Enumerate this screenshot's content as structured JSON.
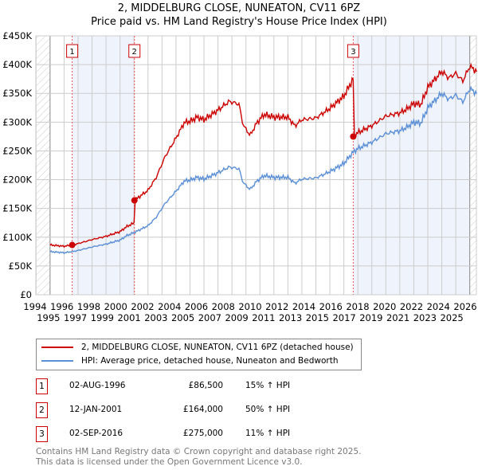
{
  "title": "2, MIDDELBURG CLOSE, NUNEATON, CV11 6PZ",
  "subtitle": "Price paid vs. HM Land Registry's House Price Index (HPI)",
  "chart_data": {
    "type": "line",
    "title": "2, MIDDELBURG CLOSE, NUNEATON, CV11 6PZ",
    "subtitle": "Price paid vs. HM Land Registry's House Price Index (HPI)",
    "xlim": [
      1994,
      2026
    ],
    "ylim": [
      0,
      450000
    ],
    "x_ticks": [
      "1994",
      "1995",
      "1996",
      "1997",
      "1998",
      "1999",
      "2000",
      "2001",
      "2002",
      "2003",
      "2004",
      "2005",
      "2006",
      "2007",
      "2008",
      "2009",
      "2010",
      "2011",
      "2012",
      "2013",
      "2014",
      "2015",
      "2016",
      "2017",
      "2018",
      "2019",
      "2020",
      "2021",
      "2022",
      "2023",
      "2024",
      "2025",
      "2026"
    ],
    "y_ticks": [
      {
        "v": 0,
        "l": "£0"
      },
      {
        "v": 50000,
        "l": "£50K"
      },
      {
        "v": 100000,
        "l": "£100K"
      },
      {
        "v": 150000,
        "l": "£150K"
      },
      {
        "v": 200000,
        "l": "£200K"
      },
      {
        "v": 250000,
        "l": "£250K"
      },
      {
        "v": 300000,
        "l": "£300K"
      },
      {
        "v": 350000,
        "l": "£350K"
      },
      {
        "v": 400000,
        "l": "£400K"
      },
      {
        "v": 450000,
        "l": "£450K"
      }
    ],
    "grid": true,
    "hpi": [
      [
        1995,
        75
      ],
      [
        1996,
        73
      ],
      [
        1996.6,
        75
      ],
      [
        1997,
        77
      ],
      [
        1998,
        83
      ],
      [
        1999,
        88
      ],
      [
        2000,
        95
      ],
      [
        2000.5,
        103
      ],
      [
        2001,
        108
      ],
      [
        2002,
        120
      ],
      [
        2002.6,
        135
      ],
      [
        2003.2,
        158
      ],
      [
        2004,
        180
      ],
      [
        2004.6,
        198
      ],
      [
        2005,
        199
      ],
      [
        2005.5,
        204
      ],
      [
        2006,
        201
      ],
      [
        2007,
        212
      ],
      [
        2007.8,
        222
      ],
      [
        2008.5,
        219
      ],
      [
        2008.8,
        195
      ],
      [
        2009.3,
        183
      ],
      [
        2009.8,
        198
      ],
      [
        2010.3,
        207
      ],
      [
        2011,
        204
      ],
      [
        2012,
        204
      ],
      [
        2012.5,
        194
      ],
      [
        2013,
        201
      ],
      [
        2014,
        203
      ],
      [
        2015,
        214
      ],
      [
        2016,
        228
      ],
      [
        2016.67,
        248
      ],
      [
        2017,
        254
      ],
      [
        2018,
        265
      ],
      [
        2019,
        280
      ],
      [
        2020,
        285
      ],
      [
        2020.5,
        291
      ],
      [
        2021,
        300
      ],
      [
        2021.5,
        298
      ],
      [
        2022,
        325
      ],
      [
        2023,
        350
      ],
      [
        2023.5,
        340
      ],
      [
        2024,
        347
      ],
      [
        2024.5,
        335
      ],
      [
        2025,
        358
      ],
      [
        2025.5,
        350
      ]
    ],
    "hpi_units": "£K",
    "sales": [
      {
        "n": "1",
        "x": 1996.58,
        "price": 86500
      },
      {
        "n": "2",
        "x": 2001.03,
        "price": 164000
      },
      {
        "n": "3",
        "x": 2016.67,
        "price": 275000
      }
    ],
    "colors": {
      "property": "#cc0000",
      "hpi": "#5b8fd6",
      "shade": "#eef3fc"
    },
    "legend": [
      "2, MIDDELBURG CLOSE, NUNEATON, CV11 6PZ (detached house)",
      "HPI: Average price, detached house, Nuneaton and Bedworth"
    ]
  },
  "table": [
    {
      "n": "1",
      "date": "02-AUG-1996",
      "price": "£86,500",
      "delta": "15% ↑ HPI"
    },
    {
      "n": "2",
      "date": "12-JAN-2001",
      "price": "£164,000",
      "delta": "50% ↑ HPI"
    },
    {
      "n": "3",
      "date": "02-SEP-2016",
      "price": "£275,000",
      "delta": "11% ↑ HPI"
    }
  ],
  "footer": [
    "Contains HM Land Registry data © Crown copyright and database right 2025.",
    "This data is licensed under the Open Government Licence v3.0."
  ]
}
